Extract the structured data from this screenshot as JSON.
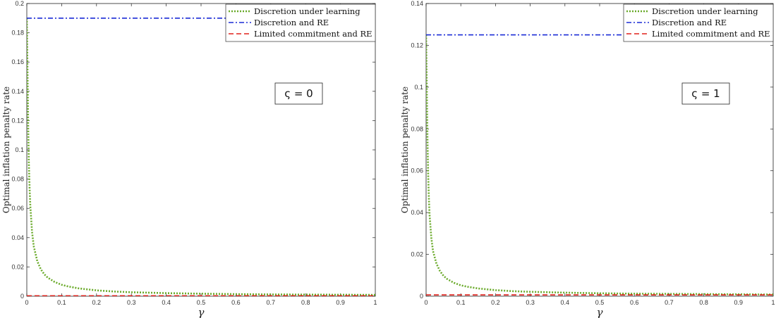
{
  "chart_data": [
    {
      "type": "line",
      "xlabel": "γ",
      "ylabel": "Optimal inflation penalty rate",
      "xlim": [
        0,
        1
      ],
      "ylim": [
        0,
        0.2
      ],
      "xticks": [
        "0",
        "0.1",
        "0.2",
        "0.3",
        "0.4",
        "0.5",
        "0.6",
        "0.7",
        "0.8",
        "0.9",
        "1"
      ],
      "yticks": [
        "0",
        "0.02",
        "0.04",
        "0.06",
        "0.08",
        "0.1",
        "0.12",
        "0.14",
        "0.16",
        "0.18",
        "0.2"
      ],
      "annotation": "ς = 0",
      "legend_position": "top-right",
      "grid": false,
      "series": [
        {
          "name": "Discretion under learning",
          "color": "#6aaa2a",
          "style": "dotted",
          "x": [
            0,
            0.002,
            0.004,
            0.006,
            0.008,
            0.01,
            0.015,
            0.02,
            0.03,
            0.04,
            0.05,
            0.06,
            0.08,
            0.1,
            0.12,
            0.15,
            0.2,
            0.25,
            0.3,
            0.4,
            0.5,
            0.6,
            0.7,
            0.8,
            0.9,
            1.0
          ],
          "y": [
            0.19,
            0.155,
            0.115,
            0.09,
            0.074,
            0.062,
            0.044,
            0.034,
            0.024,
            0.0185,
            0.015,
            0.0127,
            0.0097,
            0.0078,
            0.0066,
            0.0053,
            0.004,
            0.0032,
            0.0027,
            0.0021,
            0.0017,
            0.0014,
            0.0012,
            0.0011,
            0.001,
            0.0009
          ]
        },
        {
          "name": "Discretion and RE",
          "color": "#1a2bd6",
          "style": "dashdot",
          "x": [
            0,
            1
          ],
          "y": [
            0.19,
            0.19
          ]
        },
        {
          "name": "Limited commitment and RE",
          "color": "#e0201a",
          "style": "dashed",
          "x": [
            0,
            1
          ],
          "y": [
            0.0003,
            0.0003
          ]
        }
      ]
    },
    {
      "type": "line",
      "xlabel": "γ",
      "ylabel": "Optimal inflation penalty rate",
      "xlim": [
        0,
        1
      ],
      "ylim": [
        0,
        0.14
      ],
      "xticks": [
        "0",
        "0.1",
        "0.2",
        "0.3",
        "0.4",
        "0.5",
        "0.6",
        "0.7",
        "0.8",
        "0.9",
        "1"
      ],
      "yticks": [
        "0",
        "0.02",
        "0.04",
        "0.06",
        "0.08",
        "0.1",
        "0.12",
        "0.14"
      ],
      "annotation": "ς = 1",
      "legend_position": "top-right",
      "grid": false,
      "series": [
        {
          "name": "Discretion under learning",
          "color": "#6aaa2a",
          "style": "dotted",
          "x": [
            0,
            0.002,
            0.004,
            0.006,
            0.008,
            0.01,
            0.015,
            0.02,
            0.03,
            0.04,
            0.05,
            0.06,
            0.08,
            0.1,
            0.12,
            0.15,
            0.2,
            0.25,
            0.3,
            0.4,
            0.5,
            0.6,
            0.7,
            0.8,
            0.9,
            1.0
          ],
          "y": [
            0.125,
            0.1,
            0.075,
            0.058,
            0.047,
            0.039,
            0.028,
            0.0215,
            0.0155,
            0.012,
            0.0098,
            0.0083,
            0.0064,
            0.0052,
            0.0045,
            0.0037,
            0.0029,
            0.0024,
            0.0021,
            0.0017,
            0.0014,
            0.0012,
            0.0011,
            0.001,
            0.0009,
            0.0008
          ]
        },
        {
          "name": "Discretion and RE",
          "color": "#1a2bd6",
          "style": "dashdot",
          "x": [
            0,
            1
          ],
          "y": [
            0.125,
            0.125
          ]
        },
        {
          "name": "Limited commitment and RE",
          "color": "#e0201a",
          "style": "dashed",
          "x": [
            0,
            1
          ],
          "y": [
            0.0006,
            0.0006
          ]
        }
      ]
    }
  ]
}
